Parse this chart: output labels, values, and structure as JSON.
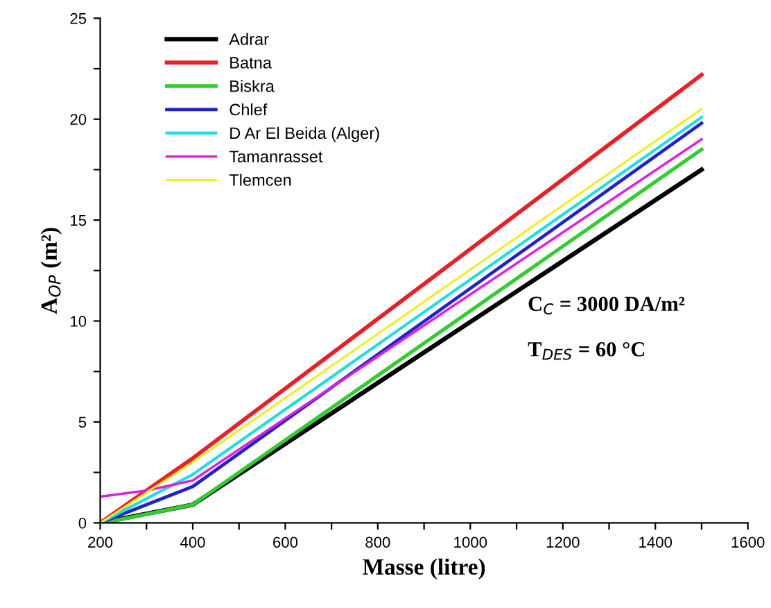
{
  "chart_data": {
    "type": "line",
    "xlabel": "Masse (litre)",
    "ylabel": "A$_{OP}$ (m²)",
    "xlim": [
      200,
      1600
    ],
    "ylim": [
      0,
      25
    ],
    "xticks": [
      200,
      {
        "value": 300,
        "label": null
      },
      400,
      {
        "value": 500,
        "label": null
      },
      600,
      {
        "value": 700,
        "label": null
      },
      800,
      {
        "value": 900,
        "label": null
      },
      1000,
      {
        "value": 1100,
        "label": null
      },
      1200,
      {
        "value": 1300,
        "label": null
      },
      1400,
      {
        "value": 1500,
        "label": null
      },
      1600
    ],
    "yticks": [
      0,
      {
        "value": 2.5,
        "label": null
      },
      5,
      {
        "value": 7.5,
        "label": null
      },
      10,
      {
        "value": 12.5,
        "label": null
      },
      15,
      {
        "value": 17.5,
        "label": null
      },
      20,
      {
        "value": 22.5,
        "label": null
      },
      25
    ],
    "legend": "top left",
    "grid": false,
    "line_style": "solid",
    "annotations": [
      "C$_{C}$ = 3000 DA/m²",
      "T$_{DES}$ = 60 °C"
    ],
    "series": [
      {
        "name": "Adrar",
        "color": "#000000",
        "x": [
          200,
          400,
          1500
        ],
        "values": [
          0,
          0.9,
          17.5
        ]
      },
      {
        "name": "Batna",
        "color": "#e8202a",
        "x": [
          200,
          400,
          1500
        ],
        "values": [
          0,
          3.2,
          22.2
        ]
      },
      {
        "name": "Biskra",
        "color": "#33cc33",
        "x": [
          200,
          250,
          400,
          1500
        ],
        "values": [
          0,
          0.2,
          0.9,
          18.5
        ]
      },
      {
        "name": "Chlef",
        "color": "#2222cc",
        "x": [
          200,
          400,
          1500
        ],
        "values": [
          0,
          1.8,
          19.8
        ]
      },
      {
        "name": "D Ar El Beida (Alger)",
        "color": "#22dddd",
        "x": [
          200,
          400,
          1500
        ],
        "values": [
          0,
          2.4,
          20.1
        ]
      },
      {
        "name": "Tamanrasset",
        "color": "#dd22dd",
        "x": [
          200,
          300,
          400,
          1500
        ],
        "values": [
          1.3,
          1.6,
          2.1,
          19.0
        ]
      },
      {
        "name": "Tlemcen",
        "color": "#eeee22",
        "x": [
          200,
          400,
          1500
        ],
        "values": [
          0,
          3.0,
          20.5
        ]
      }
    ]
  }
}
